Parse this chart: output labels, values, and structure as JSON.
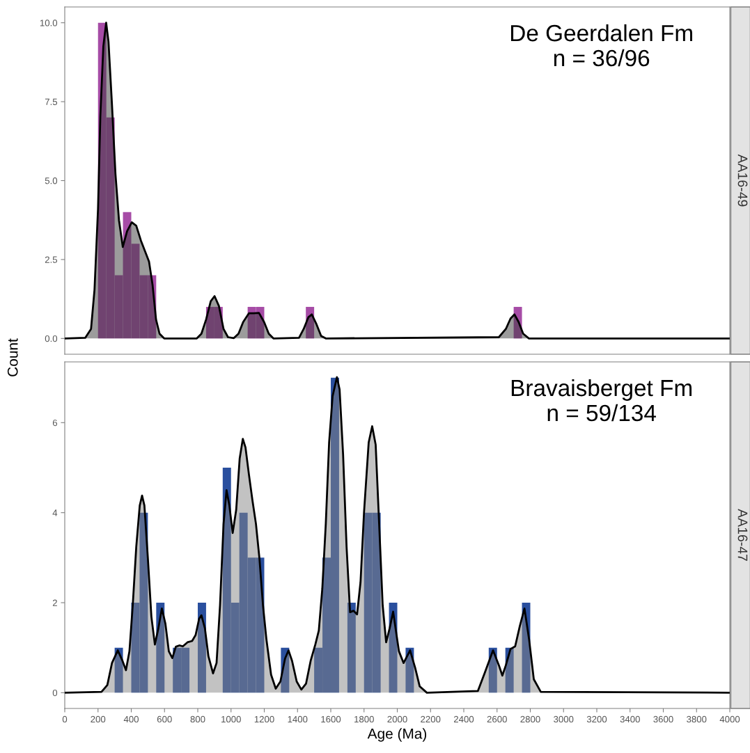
{
  "chart_data": [
    {
      "type": "histogram",
      "annotations": [
        "De Geerdalen Fm\nn = 36/96",
        "AA16-49"
      ],
      "ylabel": "Count",
      "bins": [
        200,
        250,
        300,
        350,
        400,
        450,
        500,
        550,
        600,
        650,
        700,
        750,
        800,
        850,
        900,
        950,
        1000,
        1050,
        1100,
        1150,
        1200,
        1250,
        1300,
        1350,
        1400,
        1450,
        1500,
        1550,
        1600,
        1650,
        1700,
        1750,
        1800,
        1850,
        1900,
        1950,
        2000,
        2050,
        2100,
        2150,
        2200,
        2250,
        2300,
        2350,
        2400,
        2450,
        2500,
        2550,
        2600,
        2650,
        2700,
        2750
      ],
      "values": [
        10,
        7,
        2,
        4,
        3,
        2,
        2,
        0,
        0,
        0,
        0,
        0,
        0,
        1,
        1,
        0,
        0,
        0,
        1,
        1,
        0,
        0,
        0,
        0,
        0,
        1,
        0,
        0,
        0,
        0,
        0,
        0,
        0,
        0,
        0,
        0,
        0,
        0,
        0,
        0,
        0,
        0,
        0,
        0,
        0,
        0,
        0,
        0,
        0,
        0,
        1
      ],
      "color": "#a64ca6",
      "series": [
        {
          "type": "area",
          "color": "#3a3a3a",
          "x": [
            0,
            123,
            158,
            179,
            200,
            214,
            232,
            249,
            263,
            284,
            305,
            326,
            349,
            375,
            403,
            430,
            458,
            486,
            507,
            528,
            549,
            570,
            598,
            794,
            822,
            850,
            878,
            901,
            927,
            955,
            982,
            1017,
            1045,
            1073,
            1108,
            1136,
            1168,
            1199,
            1227,
            1255,
            1409,
            1437,
            1465,
            1486,
            1514,
            1542,
            1570,
            2611,
            2653,
            2681,
            2705,
            2730,
            2757,
            2792,
            4000
          ],
          "values": [
            0,
            0.02,
            0.3,
            1.55,
            4.1,
            7.05,
            9.25,
            10.0,
            9.4,
            7.4,
            5.2,
            3.75,
            2.9,
            3.4,
            3.68,
            3.57,
            3.1,
            2.72,
            2.43,
            1.7,
            0.6,
            0.15,
            0,
            0,
            0.15,
            0.6,
            1.18,
            1.34,
            1.03,
            0.3,
            0.04,
            0.01,
            0.15,
            0.52,
            0.8,
            0.8,
            0.81,
            0.52,
            0.15,
            0,
            0.02,
            0.3,
            0.67,
            0.76,
            0.45,
            0.08,
            0,
            0.04,
            0.3,
            0.63,
            0.76,
            0.52,
            0.15,
            0,
            0
          ]
        }
      ],
      "xlim": [
        0,
        4000
      ],
      "ylim": [
        -0.5,
        10.5
      ],
      "yticks": [
        {
          "value": 0,
          "label": "0.0"
        },
        {
          "value": 2.5,
          "label": "2.5"
        },
        {
          "value": 5,
          "label": "5.0"
        },
        {
          "value": 7.5,
          "label": "7.5"
        },
        {
          "value": 10,
          "label": "10.0"
        }
      ],
      "tick_labels": "y",
      "grid": false,
      "legend": false
    },
    {
      "type": "histogram",
      "annotations": [
        "Bravaisberget Fm\nn = 59/134",
        "AA16-47"
      ],
      "xlabel": "Age (Ma)",
      "bins": [
        300,
        350,
        400,
        450,
        500,
        550,
        600,
        650,
        700,
        750,
        800,
        850,
        900,
        950,
        1000,
        1050,
        1100,
        1150,
        1200,
        1250,
        1300,
        1350,
        1400,
        1450,
        1500,
        1550,
        1600,
        1650,
        1700,
        1750,
        1800,
        1850,
        1900,
        1950,
        2000,
        2050,
        2100,
        2150,
        2200,
        2250,
        2300,
        2350,
        2400,
        2450,
        2500,
        2550,
        2600,
        2650,
        2700,
        2750,
        2800
      ],
      "values": [
        1,
        0,
        2,
        4,
        0,
        2,
        0,
        1,
        1,
        0,
        2,
        0,
        0,
        5,
        2,
        4,
        3,
        3,
        0,
        0,
        1,
        0,
        0,
        0,
        1,
        3,
        7,
        0,
        2,
        0,
        4,
        4,
        0,
        2,
        0,
        1,
        0,
        0,
        0,
        0,
        0,
        0,
        0,
        0,
        0,
        1,
        0,
        1,
        0,
        2
      ],
      "color": "#2a4f9e",
      "series": [
        {
          "type": "area",
          "color": "#868686",
          "x": [
            0,
            221,
            256,
            284,
            319,
            347,
            368,
            389,
            409,
            430,
            451,
            465,
            479,
            500,
            521,
            542,
            563,
            584,
            605,
            626,
            647,
            668,
            689,
            710,
            738,
            766,
            787,
            808,
            822,
            843,
            864,
            892,
            913,
            934,
            955,
            973,
            990,
            1010,
            1031,
            1052,
            1071,
            1087,
            1108,
            1129,
            1150,
            1171,
            1192,
            1213,
            1241,
            1269,
            1297,
            1325,
            1346,
            1367,
            1395,
            1423,
            1451,
            1479,
            1507,
            1528,
            1549,
            1570,
            1590,
            1611,
            1637,
            1653,
            1674,
            1695,
            1716,
            1737,
            1758,
            1779,
            1800,
            1828,
            1849,
            1870,
            1891,
            1912,
            1933,
            1954,
            1975,
            2010,
            2038,
            2077,
            2107,
            2135,
            2178,
            2485,
            2527,
            2576,
            2611,
            2632,
            2653,
            2681,
            2709,
            2737,
            2765,
            2793,
            2821,
            2863,
            4000
          ],
          "values": [
            0,
            0.02,
            0.17,
            0.66,
            0.94,
            0.71,
            0.5,
            0.92,
            1.95,
            3.24,
            4.16,
            4.38,
            4.16,
            2.98,
            1.69,
            1.07,
            1.43,
            1.87,
            1.54,
            0.92,
            0.77,
            1.02,
            1.05,
            1.03,
            1.12,
            1.15,
            1.28,
            1.64,
            1.72,
            1.43,
            0.81,
            0.43,
            0.66,
            1.95,
            3.75,
            4.5,
            4.16,
            3.55,
            4.06,
            5.2,
            5.64,
            5.45,
            4.84,
            4.27,
            3.75,
            2.98,
            1.95,
            1.18,
            0.4,
            0.09,
            0.25,
            0.76,
            0.94,
            0.71,
            0.25,
            0.07,
            0.2,
            0.71,
            1.07,
            1.38,
            2.31,
            3.75,
            5.56,
            6.59,
            7.01,
            6.74,
            5.3,
            3.24,
            1.79,
            1.82,
            1.74,
            2.46,
            4.01,
            5.56,
            5.92,
            5.51,
            3.75,
            1.95,
            1.12,
            1.43,
            1.8,
            0.92,
            0.66,
            0.94,
            0.56,
            0.14,
            0,
            0.04,
            0.45,
            0.94,
            0.61,
            0.38,
            0.61,
            0.97,
            1.03,
            1.48,
            1.87,
            1.18,
            0.3,
            0.02,
            0
          ]
        }
      ],
      "xlim": [
        0,
        4000
      ],
      "ylim": [
        -0.35,
        7.35
      ],
      "xticks": [
        0,
        200,
        400,
        600,
        800,
        1000,
        1200,
        1400,
        1600,
        1800,
        2000,
        2200,
        2400,
        2600,
        2800,
        3000,
        3200,
        3400,
        3600,
        3800,
        4000
      ],
      "yticks": [
        0,
        2,
        4,
        6
      ],
      "grid": false,
      "legend": false
    }
  ]
}
